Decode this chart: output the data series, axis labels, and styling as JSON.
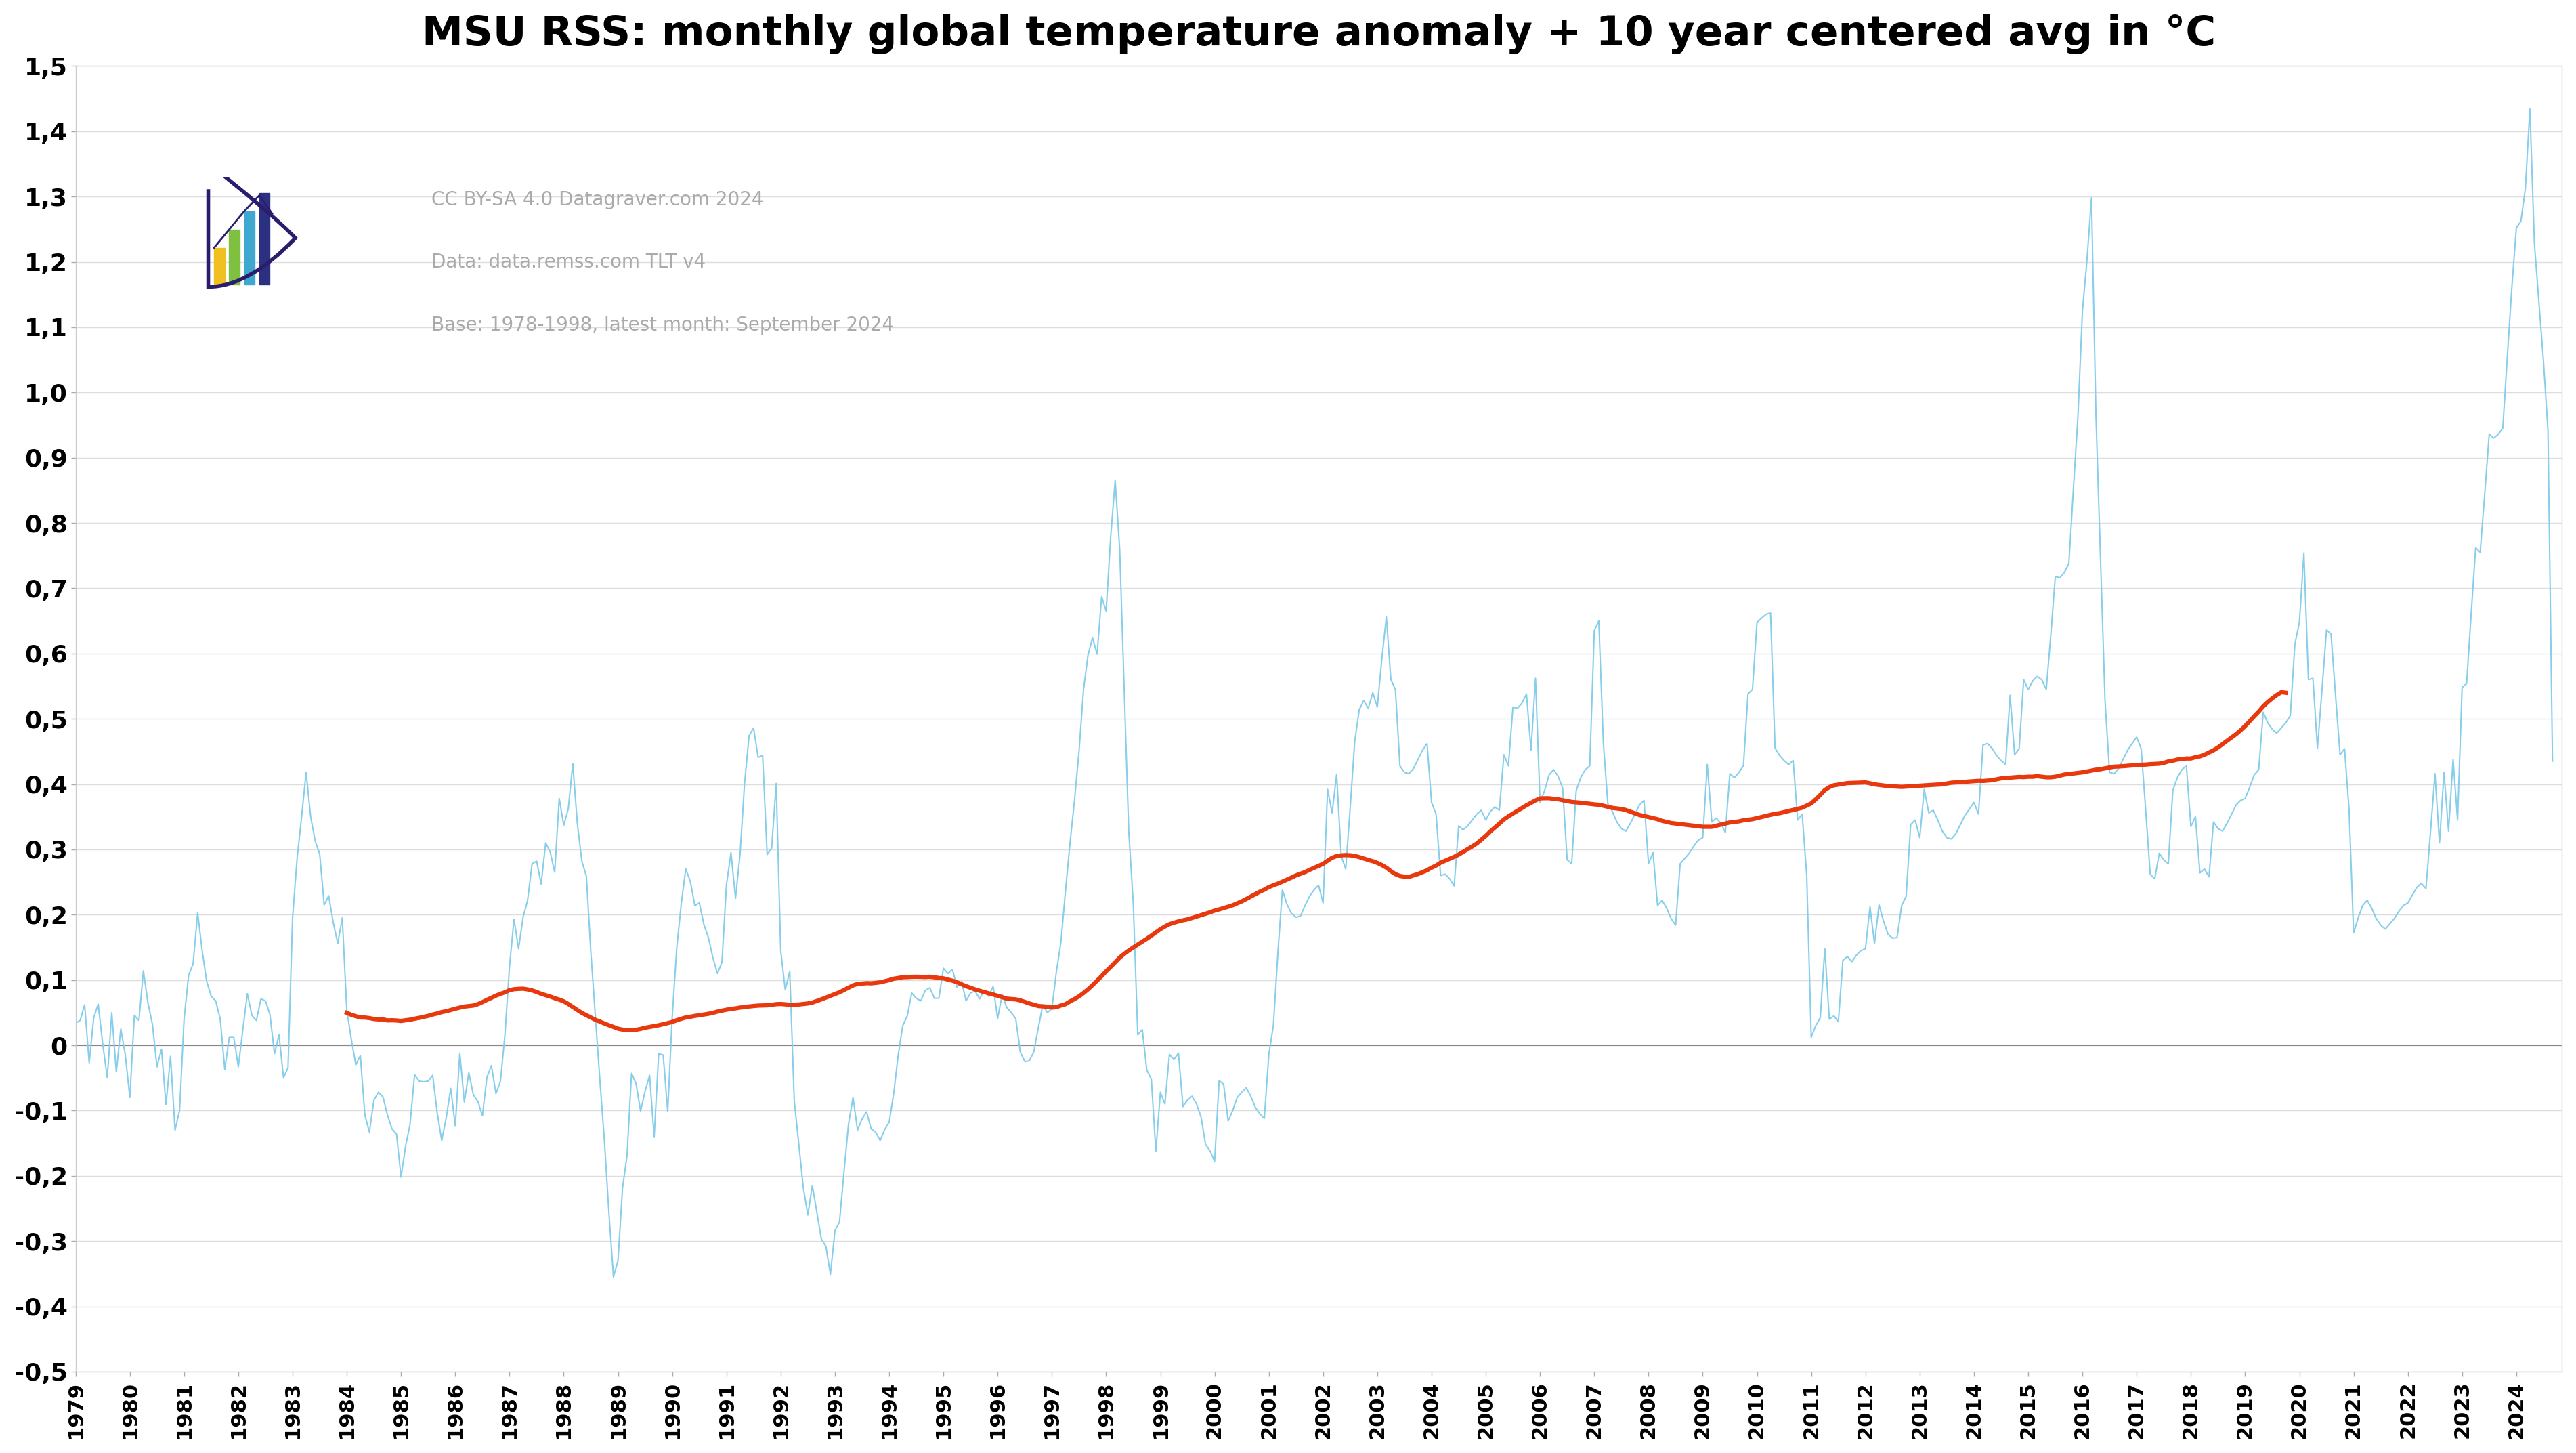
{
  "title": "MSU RSS: monthly global temperature anomaly + 10 year centered avg in °C",
  "credit_line1": "CC BY-SA 4.0 Datagraver.com 2024",
  "credit_line2": "Data: data.remss.com TLT v4",
  "credit_line3": "Base: 1978-1998, latest month: September 2024",
  "background_color": "#ffffff",
  "monthly_color": "#87CEEB",
  "avg_color": "#e8380d",
  "zero_line_color": "#888888",
  "grid_color": "#dddddd",
  "ylim": [
    -0.5,
    1.5
  ],
  "start_year": 1979,
  "end_year": 2024,
  "monthly": [
    0.034,
    0.038,
    0.062,
    -0.027,
    0.042,
    0.063,
    0.002,
    -0.05,
    0.05,
    -0.041,
    0.025,
    -0.015,
    -0.08,
    0.046,
    0.038,
    0.114,
    0.065,
    0.032,
    -0.033,
    -0.006,
    -0.091,
    -0.017,
    -0.13,
    -0.1,
    0.04,
    0.107,
    0.125,
    0.203,
    0.145,
    0.098,
    0.075,
    0.068,
    0.04,
    -0.037,
    0.012,
    0.012,
    -0.033,
    0.024,
    0.079,
    0.046,
    0.038,
    0.071,
    0.068,
    0.047,
    -0.013,
    0.016,
    -0.05,
    -0.034,
    0.195,
    0.286,
    0.35,
    0.418,
    0.35,
    0.313,
    0.293,
    0.215,
    0.229,
    0.188,
    0.156,
    0.195,
    0.054,
    0.009,
    -0.03,
    -0.016,
    -0.107,
    -0.133,
    -0.084,
    -0.072,
    -0.079,
    -0.107,
    -0.128,
    -0.136,
    -0.202,
    -0.155,
    -0.121,
    -0.045,
    -0.055,
    -0.056,
    -0.055,
    -0.046,
    -0.103,
    -0.146,
    -0.111,
    -0.066,
    -0.124,
    -0.012,
    -0.087,
    -0.042,
    -0.076,
    -0.086,
    -0.108,
    -0.049,
    -0.031,
    -0.074,
    -0.055,
    0.017,
    0.121,
    0.193,
    0.148,
    0.196,
    0.222,
    0.278,
    0.282,
    0.247,
    0.31,
    0.296,
    0.265,
    0.378,
    0.337,
    0.362,
    0.431,
    0.34,
    0.282,
    0.259,
    0.142,
    0.044,
    -0.054,
    -0.147,
    -0.258,
    -0.355,
    -0.33,
    -0.219,
    -0.169,
    -0.043,
    -0.059,
    -0.101,
    -0.07,
    -0.046,
    -0.141,
    -0.013,
    -0.015,
    -0.101,
    0.044,
    0.149,
    0.217,
    0.27,
    0.251,
    0.214,
    0.218,
    0.185,
    0.165,
    0.134,
    0.11,
    0.127,
    0.246,
    0.295,
    0.225,
    0.292,
    0.401,
    0.474,
    0.486,
    0.441,
    0.444,
    0.292,
    0.302,
    0.401,
    0.145,
    0.085,
    0.113,
    -0.085,
    -0.152,
    -0.218,
    -0.26,
    -0.215,
    -0.256,
    -0.297,
    -0.308,
    -0.351,
    -0.284,
    -0.271,
    -0.194,
    -0.121,
    -0.08,
    -0.13,
    -0.113,
    -0.102,
    -0.128,
    -0.133,
    -0.146,
    -0.129,
    -0.118,
    -0.074,
    -0.015,
    0.03,
    0.045,
    0.08,
    0.072,
    0.068,
    0.084,
    0.088,
    0.072,
    0.072,
    0.118,
    0.11,
    0.116,
    0.089,
    0.098,
    0.068,
    0.08,
    0.083,
    0.071,
    0.084,
    0.075,
    0.09,
    0.041,
    0.078,
    0.058,
    0.05,
    0.041,
    -0.01,
    -0.025,
    -0.024,
    -0.01,
    0.027,
    0.062,
    0.05,
    0.056,
    0.113,
    0.158,
    0.236,
    0.309,
    0.375,
    0.45,
    0.545,
    0.598,
    0.624,
    0.599,
    0.687,
    0.665,
    0.778,
    0.865,
    0.76,
    0.545,
    0.328,
    0.218,
    0.016,
    0.024,
    -0.038,
    -0.052,
    -0.162,
    -0.072,
    -0.09,
    -0.014,
    -0.022,
    -0.012,
    -0.094,
    -0.084,
    -0.078,
    -0.09,
    -0.11,
    -0.152,
    -0.162,
    -0.178,
    -0.054,
    -0.06,
    -0.116,
    -0.1,
    -0.08,
    -0.072,
    -0.065,
    -0.078,
    -0.095,
    -0.105,
    -0.112,
    -0.014,
    0.03,
    0.142,
    0.238,
    0.216,
    0.202,
    0.196,
    0.198,
    0.214,
    0.228,
    0.238,
    0.245,
    0.218,
    0.392,
    0.356,
    0.415,
    0.29,
    0.27,
    0.364,
    0.465,
    0.514,
    0.528,
    0.516,
    0.54,
    0.518,
    0.592,
    0.656,
    0.56,
    0.545,
    0.428,
    0.418,
    0.416,
    0.424,
    0.438,
    0.452,
    0.462,
    0.372,
    0.354,
    0.26,
    0.262,
    0.255,
    0.244,
    0.336,
    0.33,
    0.336,
    0.345,
    0.354,
    0.36,
    0.345,
    0.358,
    0.365,
    0.36,
    0.445,
    0.428,
    0.518,
    0.516,
    0.524,
    0.538,
    0.452,
    0.562,
    0.372,
    0.39,
    0.414,
    0.422,
    0.412,
    0.394,
    0.284,
    0.278,
    0.39,
    0.41,
    0.422,
    0.428,
    0.635,
    0.65,
    0.464,
    0.37,
    0.358,
    0.342,
    0.332,
    0.328,
    0.34,
    0.354,
    0.368,
    0.375,
    0.278,
    0.295,
    0.214,
    0.222,
    0.21,
    0.194,
    0.184,
    0.278,
    0.286,
    0.294,
    0.305,
    0.314,
    0.318,
    0.43,
    0.342,
    0.348,
    0.34,
    0.326,
    0.416,
    0.41,
    0.418,
    0.428,
    0.538,
    0.545,
    0.648,
    0.654,
    0.66,
    0.662,
    0.455,
    0.444,
    0.436,
    0.43,
    0.436,
    0.345,
    0.354,
    0.26,
    0.012,
    0.03,
    0.042,
    0.148,
    0.04,
    0.045,
    0.036,
    0.13,
    0.136,
    0.128,
    0.138,
    0.145,
    0.148,
    0.212,
    0.156,
    0.215,
    0.19,
    0.17,
    0.164,
    0.165,
    0.214,
    0.228,
    0.338,
    0.345,
    0.318,
    0.392,
    0.356,
    0.36,
    0.345,
    0.328,
    0.318,
    0.316,
    0.324,
    0.338,
    0.352,
    0.362,
    0.372,
    0.354,
    0.46,
    0.462,
    0.455,
    0.444,
    0.436,
    0.43,
    0.536,
    0.445,
    0.454,
    0.56,
    0.545,
    0.558,
    0.565,
    0.56,
    0.545,
    0.628,
    0.718,
    0.716,
    0.724,
    0.738,
    0.852,
    0.962,
    1.125,
    1.202,
    1.298,
    0.963,
    0.744,
    0.528,
    0.418,
    0.416,
    0.424,
    0.438,
    0.452,
    0.462,
    0.472,
    0.454,
    0.36,
    0.262,
    0.255,
    0.294,
    0.284,
    0.278,
    0.39,
    0.41,
    0.422,
    0.428,
    0.335,
    0.35,
    0.264,
    0.27,
    0.258,
    0.342,
    0.332,
    0.328,
    0.34,
    0.354,
    0.368,
    0.375,
    0.378,
    0.395,
    0.414,
    0.422,
    0.51,
    0.494,
    0.484,
    0.478,
    0.486,
    0.494,
    0.505,
    0.614,
    0.648,
    0.754,
    0.56,
    0.562,
    0.455,
    0.544,
    0.636,
    0.63,
    0.536,
    0.445,
    0.454,
    0.36,
    0.172,
    0.195,
    0.214,
    0.222,
    0.21,
    0.194,
    0.184,
    0.178,
    0.186,
    0.194,
    0.205,
    0.214,
    0.218,
    0.23,
    0.242,
    0.248,
    0.24,
    0.326,
    0.416,
    0.31,
    0.418,
    0.328,
    0.438,
    0.345,
    0.548,
    0.554,
    0.66,
    0.762,
    0.755,
    0.844,
    0.936,
    0.93,
    0.936,
    0.945,
    1.054,
    1.16,
    1.252,
    1.262,
    1.312,
    1.434,
    1.228,
    1.138,
    1.048,
    0.942,
    0.435
  ]
}
